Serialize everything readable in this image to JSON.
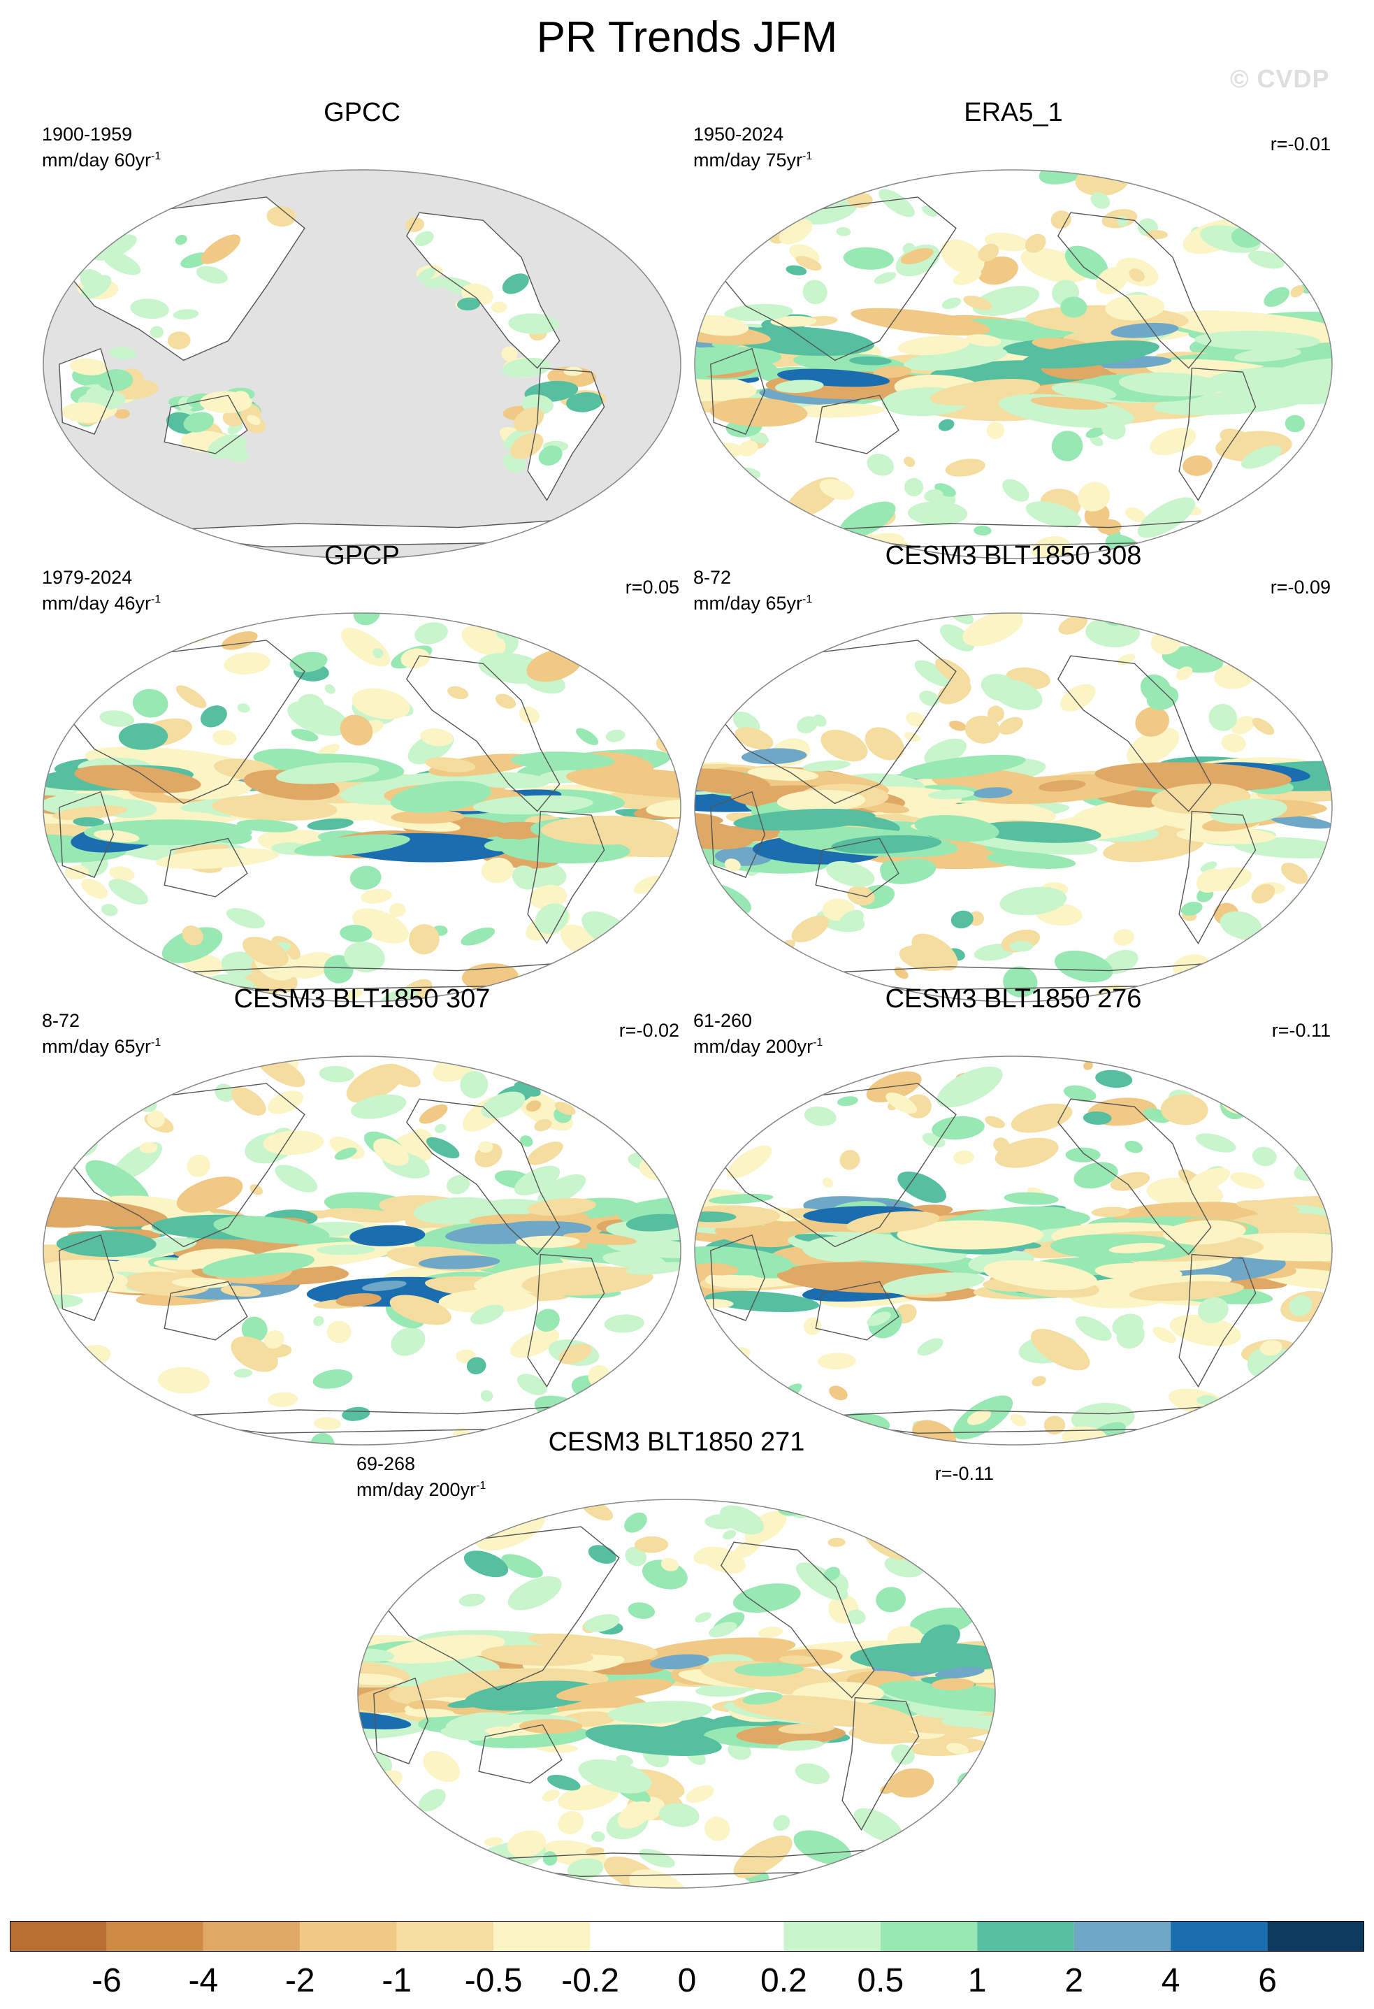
{
  "title": "PR Trends JFM",
  "watermark": "© CVDP",
  "panels": [
    {
      "title": "GPCC",
      "period": "1900-1959",
      "units_prefix": "mm/day 60yr",
      "units_exp": "-1",
      "corr": "",
      "mask_ocean": true
    },
    {
      "title": "ERA5_1",
      "period": "1950-2024",
      "units_prefix": "mm/day 75yr",
      "units_exp": "-1",
      "corr": "r=-0.01",
      "mask_ocean": false
    },
    {
      "title": "GPCP",
      "period": "1979-2024",
      "units_prefix": "mm/day 46yr",
      "units_exp": "-1",
      "corr": "r=0.05",
      "mask_ocean": false
    },
    {
      "title": "CESM3 BLT1850 308",
      "period": "8-72",
      "units_prefix": "mm/day 65yr",
      "units_exp": "-1",
      "corr": "r=-0.09",
      "mask_ocean": false
    },
    {
      "title": "CESM3 BLT1850 307",
      "period": "8-72",
      "units_prefix": "mm/day 65yr",
      "units_exp": "-1",
      "corr": "r=-0.02",
      "mask_ocean": false
    },
    {
      "title": "CESM3 BLT1850 276",
      "period": "61-260",
      "units_prefix": "mm/day 200yr",
      "units_exp": "-1",
      "corr": "r=-0.11",
      "mask_ocean": false
    },
    {
      "title": "CESM3 BLT1850 271",
      "period": "69-268",
      "units_prefix": "mm/day 200yr",
      "units_exp": "-1",
      "corr": "r=-0.11",
      "mask_ocean": false
    }
  ],
  "colorbar": {
    "labels": [
      "-6",
      "-4",
      "-2",
      "-1",
      "-0.5",
      "-0.2",
      "0",
      "0.2",
      "0.5",
      "1",
      "2",
      "4",
      "6"
    ],
    "colors": [
      "#b86f31",
      "#cf8a46",
      "#e0a865",
      "#f0c985",
      "#f4dd9f",
      "#fbf4c4",
      "#ffffff",
      "#ffffff",
      "#c9f5cc",
      "#98e8b3",
      "#55bfa0",
      "#6fa7c6",
      "#1a6eaf",
      "#0b3a5e"
    ]
  },
  "map_colors": {
    "land_mask": "#e2e2e2",
    "coast": "#555555",
    "border": "#888888"
  }
}
